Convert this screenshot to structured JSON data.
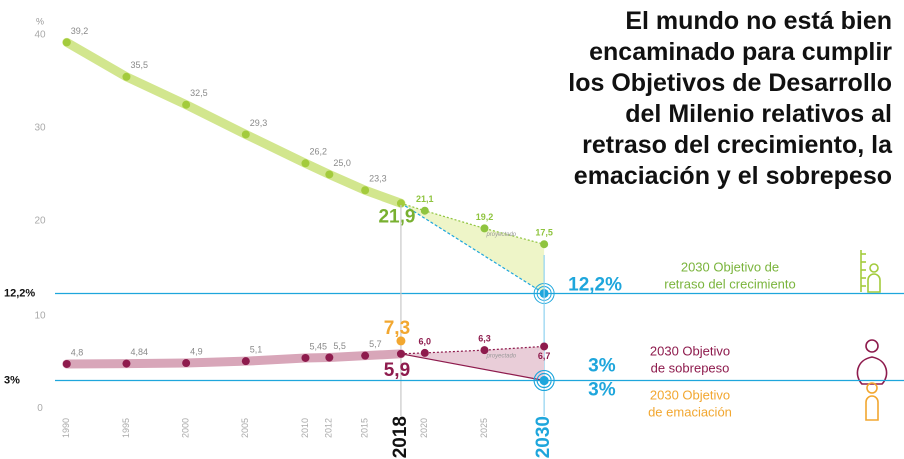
{
  "chart_data": [
    {
      "type": "line",
      "title": [
        "El mundo no está bien",
        "encaminado para cumplir",
        "los Objetivos de Desarrollo",
        "del Milenio relativos al",
        "retraso del crecimiento, la",
        "emaciación y el sobrepeso"
      ],
      "ylabel": "%",
      "projection_label": "proyectado",
      "xlim": [
        1987,
        2032
      ],
      "ylim": [
        11.5,
        41.5
      ],
      "yticks": [
        20,
        30,
        40,
        {
          "value": 12.2,
          "label": "12,2%"
        }
      ],
      "highlight_yticks": [
        3
      ],
      "series": [
        {
          "kind": "main",
          "color": "#d2e68e",
          "marker_color": "#a3cb3c",
          "label_color": "#78b030",
          "x": [
            1990,
            1995,
            2000,
            2005,
            2010,
            2012,
            2015,
            2018
          ],
          "values": [
            39.2,
            35.5,
            32.5,
            29.3,
            26.2,
            25.0,
            23.3,
            21.9
          ],
          "value_labels": [
            "39,2",
            "35,5",
            "32,5",
            "29,3",
            "26,2",
            "25,0",
            "23,3",
            "21,9"
          ]
        },
        {
          "kind": "projected",
          "color": "#8fc43f",
          "area_color": "#eef5c8",
          "x": [
            2020,
            2025,
            2030
          ],
          "values": [
            21.1,
            19.2,
            17.5
          ],
          "value_labels": [
            "21,1",
            "19,2",
            "17,5"
          ]
        },
        {
          "kind": "target",
          "color": "#1ea6dc",
          "link_color": "#1ea6dc",
          "link_dash": true,
          "x": [
            2030
          ],
          "values": [
            12.2
          ],
          "value_labels": [
            "12,2%"
          ],
          "note": [
            "2030 Objetivo de",
            "retraso del crecimiento"
          ],
          "note_color": "#7ab43c"
        }
      ]
    },
    {
      "type": "line",
      "projection_label": "proyectado",
      "xlim": [
        1987,
        2032
      ],
      "ylim": [
        -0.2,
        11.2
      ],
      "yticks": [
        0,
        10,
        {
          "value": 3,
          "label": "3%"
        }
      ],
      "highlight_yticks": [
        2
      ],
      "xticks": [
        1990,
        1995,
        2000,
        2005,
        2010,
        2012,
        2015,
        2018,
        2020,
        2025,
        2030
      ],
      "emphasis_xticks": {
        "7": "#111111",
        "10": "#1ea6dc"
      },
      "series": [
        {
          "kind": "main",
          "color": "#d8a6b9",
          "marker_color": "#8e1b4d",
          "label_color": "#8e1b4d",
          "x": [
            1990,
            1995,
            2000,
            2005,
            2010,
            2012,
            2015,
            2018
          ],
          "values": [
            4.8,
            4.84,
            4.9,
            5.1,
            5.45,
            5.5,
            5.7,
            5.9
          ],
          "value_labels": [
            "4,8",
            "4,84",
            "4,9",
            "5,1",
            "5,45",
            "5,5",
            "5,7",
            "5,9"
          ]
        },
        {
          "kind": "projected",
          "color": "#8e1b4d",
          "area_color": "#e9cdd8",
          "x": [
            2020,
            2025,
            2030
          ],
          "values": [
            6.0,
            6.3,
            6.7
          ],
          "value_labels": [
            "6,0",
            "6,3",
            "6,7"
          ]
        },
        {
          "kind": "target",
          "color": "#1ea6dc",
          "link_color": "#8e1b4d",
          "link_dash": false,
          "x": [
            2030
          ],
          "values": [
            3
          ],
          "value_labels": [
            "3%"
          ],
          "note": [
            "2030 Objetivo",
            "de sobrepeso"
          ],
          "note_color": "#8e1b4d"
        },
        {
          "kind": "point",
          "color": "#f2a730",
          "label_color": "#f2a730",
          "x": [
            2018
          ],
          "values": [
            7.3
          ],
          "value_labels": [
            "7,3"
          ]
        },
        {
          "kind": "target",
          "color": "#1ea6dc",
          "x": [
            2030
          ],
          "values": [
            3
          ],
          "value_labels": [
            "3%"
          ],
          "note": [
            "2030 Objetivo",
            "de emaciación"
          ],
          "note_color": "#f2a730"
        }
      ]
    }
  ]
}
